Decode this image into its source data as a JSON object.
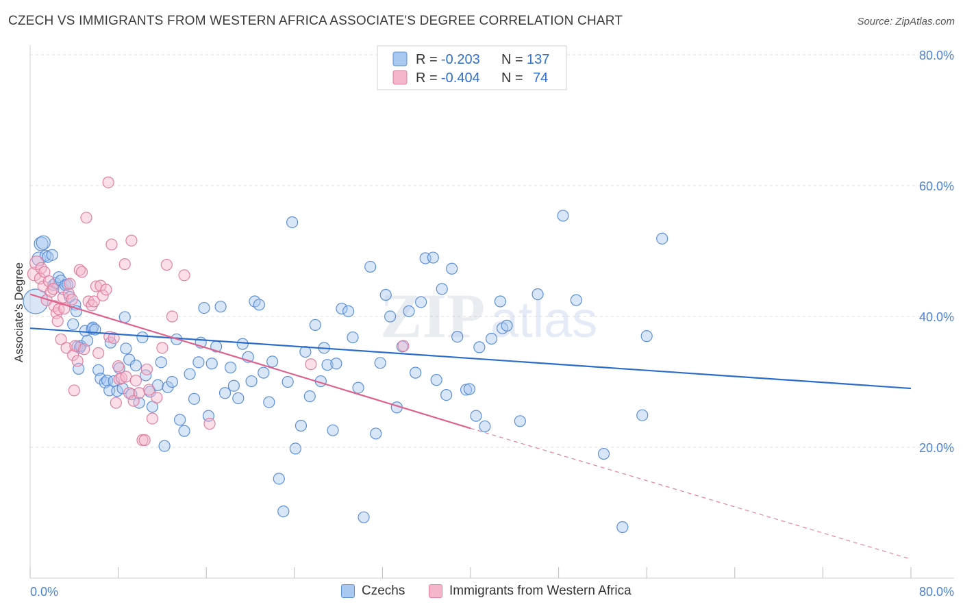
{
  "title": "CZECH VS IMMIGRANTS FROM WESTERN AFRICA ASSOCIATE'S DEGREE CORRELATION CHART",
  "source": "Source: ZipAtlas.com",
  "watermark": {
    "zip": "ZIP",
    "atlas": "atlas"
  },
  "legend_box": {
    "rows": [
      {
        "r_label": "R =",
        "r_value": "-0.203",
        "n_label": "N =",
        "n_value": "137"
      },
      {
        "r_label": "R =",
        "r_value": "-0.404",
        "n_label": "N =",
        "n_value": "74"
      }
    ]
  },
  "bottom_legend": {
    "series1": "Czechs",
    "series2": "Immigrants from Western Africa"
  },
  "colors": {
    "blue_fill": "#a8c8f0",
    "blue_stroke": "#5b8fd8",
    "blue_line": "#2a6ccc",
    "pink_fill": "#f5b6cb",
    "pink_stroke": "#e07fa0",
    "pink_line": "#e0608c",
    "tick_text": "#4a7fd4",
    "grid": "#dddddd"
  },
  "chart_data": {
    "type": "scatter",
    "title": "CZECH VS IMMIGRANTS FROM WESTERN AFRICA ASSOCIATE'S DEGREE CORRELATION CHART",
    "xlabel": "",
    "ylabel": "Associate's Degree",
    "xlim": [
      0,
      80
    ],
    "ylim": [
      0,
      80
    ],
    "x_ticks": [
      "0.0%",
      "80.0%"
    ],
    "y_ticks": [
      "20.0%",
      "40.0%",
      "60.0%",
      "80.0%"
    ],
    "y_tick_values": [
      20,
      40,
      60,
      80
    ],
    "grid": true,
    "legend_position": "top-center",
    "series": [
      {
        "name": "Czechs",
        "r": -0.203,
        "n": 137,
        "trend": {
          "x": [
            0,
            80
          ],
          "y": [
            38.2,
            29.0
          ],
          "dashed_from": null
        },
        "points": [
          [
            0.5,
            42.3,
            18
          ],
          [
            0.8,
            48.8,
            10
          ],
          [
            1.0,
            51.1,
            10
          ],
          [
            1.2,
            51.3,
            10
          ],
          [
            1.4,
            49.3,
            8
          ],
          [
            1.6,
            49.1,
            8
          ],
          [
            2.0,
            49.4,
            8
          ],
          [
            2.1,
            44.8,
            8
          ],
          [
            2.3,
            45.1,
            8
          ],
          [
            2.6,
            46.0,
            8
          ],
          [
            2.8,
            45.5,
            8
          ],
          [
            3.0,
            44.2,
            8
          ],
          [
            3.2,
            44.8,
            8
          ],
          [
            3.4,
            44.9,
            8
          ],
          [
            3.6,
            43.0,
            8
          ],
          [
            4.1,
            41.8,
            8
          ],
          [
            4.2,
            40.8,
            8
          ],
          [
            3.9,
            38.8,
            8
          ],
          [
            4.3,
            35.4,
            8
          ],
          [
            4.4,
            32.0,
            8
          ],
          [
            4.5,
            35.2,
            8
          ],
          [
            4.6,
            35.5,
            8
          ],
          [
            5.0,
            37.8,
            8
          ],
          [
            5.2,
            36.3,
            8
          ],
          [
            5.6,
            38.1,
            8
          ],
          [
            5.7,
            38.3,
            8
          ],
          [
            5.9,
            38.0,
            8
          ],
          [
            6.2,
            31.8,
            8
          ],
          [
            6.4,
            30.5,
            8
          ],
          [
            6.8,
            29.9,
            8
          ],
          [
            7.0,
            30.2,
            8
          ],
          [
            7.2,
            28.7,
            8
          ],
          [
            7.3,
            36.0,
            8
          ],
          [
            7.6,
            30.1,
            8
          ],
          [
            7.9,
            28.6,
            8
          ],
          [
            8.1,
            32.1,
            8
          ],
          [
            8.4,
            29.0,
            8
          ],
          [
            8.6,
            39.9,
            8
          ],
          [
            8.7,
            35.1,
            8
          ],
          [
            9.0,
            33.4,
            8
          ],
          [
            9.2,
            28.1,
            8
          ],
          [
            9.6,
            32.5,
            8
          ],
          [
            9.9,
            26.8,
            8
          ],
          [
            10.2,
            36.8,
            8
          ],
          [
            10.5,
            31.0,
            8
          ],
          [
            10.9,
            28.5,
            8
          ],
          [
            11.1,
            26.2,
            8
          ],
          [
            11.6,
            29.5,
            8
          ],
          [
            11.9,
            33.0,
            8
          ],
          [
            12.2,
            20.2,
            8
          ],
          [
            12.5,
            29.2,
            8
          ],
          [
            12.9,
            30.0,
            8
          ],
          [
            13.3,
            36.5,
            8
          ],
          [
            13.6,
            24.2,
            8
          ],
          [
            14.0,
            22.5,
            8
          ],
          [
            14.5,
            31.2,
            8
          ],
          [
            14.9,
            27.4,
            8
          ],
          [
            15.3,
            33.0,
            8
          ],
          [
            15.5,
            36.0,
            8
          ],
          [
            15.8,
            41.3,
            8
          ],
          [
            16.2,
            24.8,
            8
          ],
          [
            16.5,
            32.8,
            8
          ],
          [
            16.9,
            35.4,
            8
          ],
          [
            17.3,
            41.5,
            8
          ],
          [
            17.7,
            28.3,
            8
          ],
          [
            18.2,
            32.2,
            8
          ],
          [
            18.5,
            29.4,
            8
          ],
          [
            18.9,
            27.5,
            8
          ],
          [
            19.3,
            35.8,
            8
          ],
          [
            19.8,
            33.8,
            8
          ],
          [
            20.1,
            30.1,
            8
          ],
          [
            20.4,
            42.3,
            8
          ],
          [
            20.8,
            41.8,
            8
          ],
          [
            21.2,
            31.4,
            8
          ],
          [
            21.7,
            26.9,
            8
          ],
          [
            22.0,
            33.1,
            8
          ],
          [
            22.6,
            15.2,
            8
          ],
          [
            23.0,
            10.2,
            8
          ],
          [
            23.4,
            30.0,
            8
          ],
          [
            23.8,
            54.4,
            8
          ],
          [
            24.1,
            19.8,
            8
          ],
          [
            24.6,
            23.3,
            8
          ],
          [
            25.0,
            34.6,
            8
          ],
          [
            25.4,
            27.8,
            8
          ],
          [
            25.9,
            38.7,
            8
          ],
          [
            26.4,
            30.1,
            8
          ],
          [
            26.7,
            35.2,
            8
          ],
          [
            27.0,
            32.6,
            8
          ],
          [
            27.5,
            22.6,
            8
          ],
          [
            27.8,
            32.8,
            8
          ],
          [
            28.3,
            41.2,
            8
          ],
          [
            28.9,
            40.8,
            8
          ],
          [
            29.3,
            36.8,
            8
          ],
          [
            29.8,
            29.1,
            8
          ],
          [
            30.3,
            9.3,
            8
          ],
          [
            30.9,
            47.6,
            8
          ],
          [
            31.4,
            22.1,
            8
          ],
          [
            31.8,
            32.9,
            8
          ],
          [
            32.3,
            43.3,
            8
          ],
          [
            32.7,
            40.0,
            8
          ],
          [
            33.3,
            26.1,
            8
          ],
          [
            33.8,
            35.4,
            8
          ],
          [
            34.4,
            40.8,
            8
          ],
          [
            35.0,
            31.4,
            8
          ],
          [
            35.5,
            42.2,
            8
          ],
          [
            35.9,
            48.9,
            8
          ],
          [
            36.6,
            49.0,
            8
          ],
          [
            36.9,
            30.3,
            8
          ],
          [
            37.4,
            44.2,
            8
          ],
          [
            37.8,
            28.0,
            8
          ],
          [
            38.3,
            47.3,
            8
          ],
          [
            38.8,
            36.9,
            8
          ],
          [
            39.6,
            28.8,
            8
          ],
          [
            39.9,
            28.9,
            8
          ],
          [
            40.5,
            24.8,
            8
          ],
          [
            40.8,
            35.3,
            8
          ],
          [
            41.3,
            23.2,
            8
          ],
          [
            41.9,
            36.6,
            8
          ],
          [
            42.7,
            42.3,
            8
          ],
          [
            42.9,
            38.2,
            8
          ],
          [
            43.3,
            38.6,
            8
          ],
          [
            44.5,
            24.0,
            8
          ],
          [
            46.1,
            43.4,
            8
          ],
          [
            48.4,
            55.4,
            8
          ],
          [
            49.6,
            42.5,
            8
          ],
          [
            52.1,
            19.0,
            8
          ],
          [
            53.8,
            7.8,
            8
          ],
          [
            55.6,
            24.9,
            8
          ],
          [
            56.0,
            37.0,
            8
          ],
          [
            57.4,
            51.9,
            8
          ]
        ]
      },
      {
        "name": "Immigrants from Western Africa",
        "r": -0.404,
        "n": 74,
        "trend": {
          "x": [
            0,
            40
          ],
          "y": [
            43.4,
            22.9
          ],
          "dashed_to": [
            80,
            2.9
          ]
        },
        "points": [
          [
            0.4,
            46.5,
            10
          ],
          [
            0.6,
            48.2,
            10
          ],
          [
            0.9,
            45.8,
            8
          ],
          [
            1.0,
            47.4,
            8
          ],
          [
            1.2,
            44.6,
            8
          ],
          [
            1.3,
            46.8,
            8
          ],
          [
            1.5,
            42.5,
            8
          ],
          [
            1.7,
            45.4,
            8
          ],
          [
            1.9,
            43.8,
            8
          ],
          [
            2.1,
            44.2,
            8
          ],
          [
            2.2,
            41.6,
            8
          ],
          [
            2.4,
            40.5,
            8
          ],
          [
            2.5,
            39.3,
            8
          ],
          [
            2.6,
            41.1,
            8
          ],
          [
            2.8,
            36.5,
            8
          ],
          [
            3.0,
            42.9,
            8
          ],
          [
            3.1,
            41.2,
            8
          ],
          [
            3.3,
            35.2,
            8
          ],
          [
            3.5,
            43.5,
            8
          ],
          [
            3.6,
            45.0,
            8
          ],
          [
            3.8,
            42.6,
            8
          ],
          [
            3.9,
            34.1,
            8
          ],
          [
            4.0,
            28.7,
            8
          ],
          [
            4.1,
            35.5,
            8
          ],
          [
            4.3,
            33.2,
            8
          ],
          [
            4.5,
            47.1,
            8
          ],
          [
            4.7,
            46.8,
            8
          ],
          [
            4.9,
            35.0,
            8
          ],
          [
            5.1,
            55.1,
            8
          ],
          [
            5.3,
            42.3,
            8
          ],
          [
            5.6,
            41.7,
            8
          ],
          [
            5.8,
            42.3,
            8
          ],
          [
            6.0,
            44.6,
            8
          ],
          [
            6.2,
            34.4,
            8
          ],
          [
            6.4,
            44.7,
            8
          ],
          [
            6.6,
            43.2,
            8
          ],
          [
            6.9,
            44.1,
            8
          ],
          [
            7.1,
            60.5,
            8
          ],
          [
            7.2,
            36.9,
            8
          ],
          [
            7.4,
            51.0,
            8
          ],
          [
            7.6,
            36.7,
            8
          ],
          [
            7.8,
            26.8,
            8
          ],
          [
            8.0,
            32.4,
            8
          ],
          [
            8.1,
            30.4,
            8
          ],
          [
            8.3,
            30.6,
            8
          ],
          [
            8.6,
            48.0,
            8
          ],
          [
            8.7,
            30.8,
            8
          ],
          [
            9.0,
            28.3,
            8
          ],
          [
            9.2,
            51.6,
            8
          ],
          [
            9.4,
            27.1,
            8
          ],
          [
            9.6,
            30.2,
            8
          ],
          [
            9.9,
            28.3,
            8
          ],
          [
            10.2,
            21.1,
            8
          ],
          [
            10.4,
            21.1,
            8
          ],
          [
            10.6,
            31.9,
            8
          ],
          [
            10.8,
            28.8,
            8
          ],
          [
            11.1,
            24.4,
            8
          ],
          [
            11.5,
            27.6,
            8
          ],
          [
            12.0,
            35.2,
            8
          ],
          [
            12.4,
            47.9,
            8
          ],
          [
            12.9,
            40.0,
            8
          ],
          [
            14.0,
            46.3,
            8
          ],
          [
            16.3,
            23.6,
            8
          ],
          [
            25.5,
            32.7,
            8
          ],
          [
            33.9,
            35.5,
            8
          ]
        ]
      }
    ]
  }
}
